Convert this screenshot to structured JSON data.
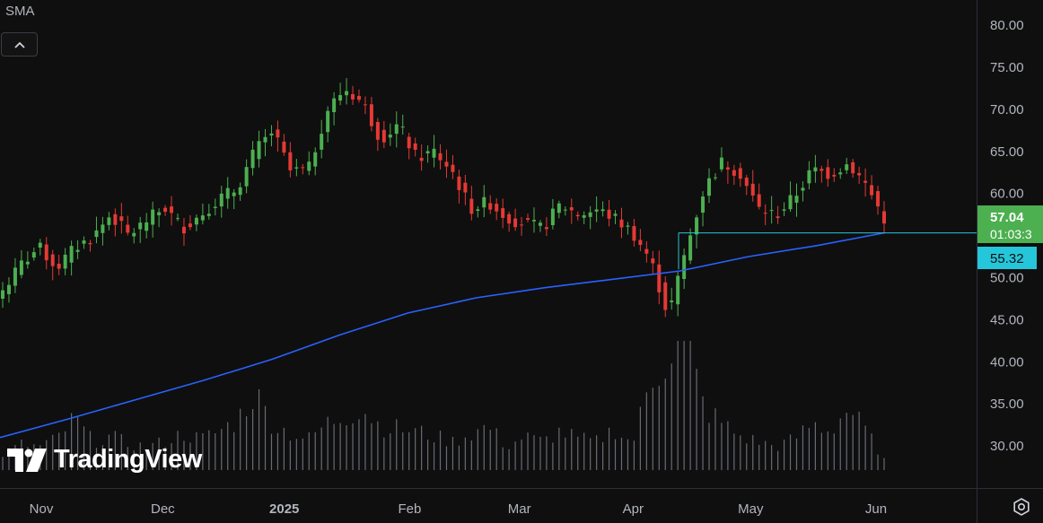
{
  "indicator": {
    "label": "SMA"
  },
  "brand": {
    "name": "TradingView"
  },
  "colors": {
    "up": "#4caf50",
    "down": "#e53935",
    "sma": "#2962ff",
    "priceLine": "#26c6da",
    "volume": "#787b86",
    "background": "#0f0f0f",
    "text": "#d1d4dc"
  },
  "icons": {
    "collapse": "chevron-up-icon",
    "settings": "gear-icon",
    "logo": "tradingview-logo-icon"
  },
  "chart_data": {
    "type": "candlestick",
    "title": "",
    "ylim": [
      25,
      83
    ],
    "yticks": [
      "80.00",
      "75.00",
      "70.00",
      "65.00",
      "60.00",
      "55.00",
      "50.00",
      "45.00",
      "40.00",
      "35.00",
      "30.00"
    ],
    "x_ticks": [
      {
        "label": "Nov",
        "date": "2024-11-01"
      },
      {
        "label": "Dec",
        "date": "2024-12-02"
      },
      {
        "label": "2025",
        "date": "2025-01-02"
      },
      {
        "label": "Feb",
        "date": "2025-02-03"
      },
      {
        "label": "Mar",
        "date": "2025-03-03"
      },
      {
        "label": "Apr",
        "date": "2025-04-01"
      },
      {
        "label": "May",
        "date": "2025-05-01"
      },
      {
        "label": "Jun",
        "date": "2025-06-02"
      }
    ],
    "last_price": {
      "value": "57.04",
      "countdown": "01:03:3"
    },
    "sma_price": {
      "value": "55.32"
    },
    "sma_series": {
      "values": [
        31.0,
        33.2,
        35.5,
        37.8,
        40.3,
        43.2,
        45.8,
        47.6,
        48.8,
        49.8,
        50.8,
        52.5,
        53.8,
        55.32
      ]
    },
    "close_series": {
      "values": [
        48.5,
        51.5,
        53.6,
        51.2,
        53.5,
        54.8,
        57.5,
        55.0,
        56.8,
        58.3,
        55.9,
        57.5,
        59.4,
        60.5,
        65.0,
        67.4,
        62.6,
        62.8,
        69.8,
        72.5,
        70.8,
        66.5,
        68.2,
        64.2,
        65.0,
        62.6,
        58.2,
        59.0,
        57.2,
        56.4,
        55.8,
        58.7,
        57.5,
        58.1,
        57.1,
        55.4,
        52.2,
        45.5,
        53.5,
        60.6,
        63.8,
        62.4,
        58.2,
        57.4,
        59.6,
        62.8,
        62.3,
        63.6,
        61.0,
        57.04
      ]
    },
    "volume_series": {
      "ylim": [
        0,
        100
      ],
      "values": [
        12,
        20,
        18,
        24,
        40,
        22,
        26,
        20,
        18,
        22,
        28,
        24,
        30,
        38,
        60,
        36,
        28,
        24,
        36,
        42,
        48,
        34,
        32,
        30,
        26,
        22,
        28,
        34,
        18,
        26,
        22,
        30,
        24,
        22,
        32,
        20,
        68,
        90,
        100,
        48,
        36,
        26,
        22,
        18,
        24,
        36,
        30,
        48,
        30,
        8
      ]
    }
  }
}
